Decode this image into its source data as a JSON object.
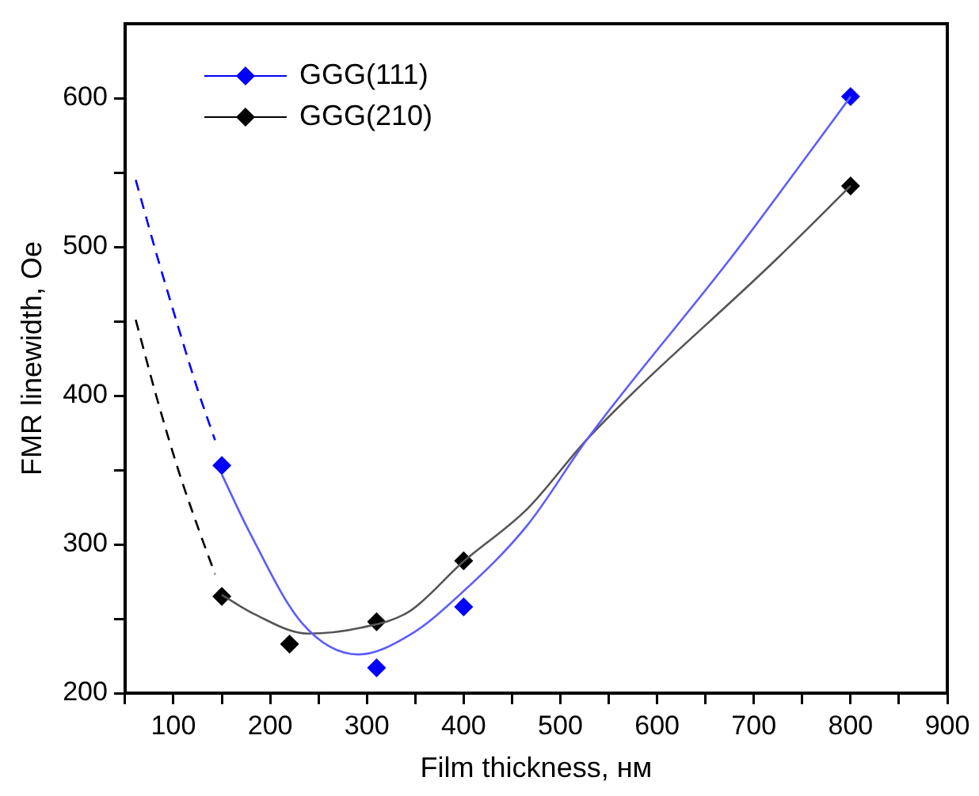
{
  "chart_data": {
    "type": "scatter",
    "xlabel": "Film thickness, нм",
    "ylabel": "FMR linewidth, Oe",
    "xlim": [
      50,
      900
    ],
    "ylim": [
      200,
      650
    ],
    "xticks": [
      {
        "value": 50,
        "label": null
      },
      100,
      {
        "value": 150,
        "label": null
      },
      200,
      {
        "value": 250,
        "label": null
      },
      300,
      {
        "value": 350,
        "label": null
      },
      400,
      {
        "value": 450,
        "label": null
      },
      500,
      {
        "value": 550,
        "label": null
      },
      600,
      {
        "value": 650,
        "label": null
      },
      700,
      {
        "value": 750,
        "label": null
      },
      800,
      {
        "value": 850,
        "label": null
      },
      900
    ],
    "yticks": [
      200,
      {
        "value": 250,
        "label": null
      },
      300,
      {
        "value": 350,
        "label": null
      },
      400,
      {
        "value": 450,
        "label": null
      },
      500,
      {
        "value": 550,
        "label": null
      },
      600
    ],
    "grid": false,
    "legend": "top left",
    "series": [
      {
        "type": "line",
        "color": "#5c5cff",
        "marker": "none",
        "line_style": "solid",
        "x": [
          150,
          178,
          233,
          291,
          344,
          399,
          466,
          528,
          678,
          740,
          800
        ],
        "values": [
          347,
          309,
          247,
          226,
          239,
          268,
          313,
          371,
          494,
          548,
          601
        ]
      },
      {
        "type": "line",
        "color": "#555555",
        "marker": "none",
        "line_style": "solid",
        "x": [
          150,
          184,
          239,
          294,
          344,
          399,
          466,
          528,
          727,
          800
        ],
        "values": [
          266,
          253,
          240,
          244,
          255,
          288,
          324,
          371,
          494,
          541
        ]
      },
      {
        "type": "line",
        "color": "#0000ff",
        "marker": "none",
        "line_style": "dashed",
        "x": [
          61,
          83,
          105,
          125,
          143
        ],
        "values": [
          545,
          494,
          446,
          404,
          370
        ]
      },
      {
        "type": "line",
        "color": "#000000",
        "marker": "none",
        "line_style": "dashed",
        "x": [
          61,
          83,
          105,
          125,
          143
        ],
        "values": [
          451,
          398,
          350,
          312,
          280
        ]
      },
      {
        "name": "GGG(111)",
        "type": "scatter",
        "color": "#0000ff",
        "marker": "diamond",
        "x": [
          150,
          310,
          400,
          800
        ],
        "values": [
          353,
          217,
          258,
          601
        ]
      },
      {
        "name": "GGG(210)",
        "type": "scatter",
        "color": "#000000",
        "marker": "diamond",
        "x": [
          150,
          220,
          310,
          400,
          800
        ],
        "values": [
          265,
          233,
          248,
          289,
          541
        ]
      }
    ]
  }
}
